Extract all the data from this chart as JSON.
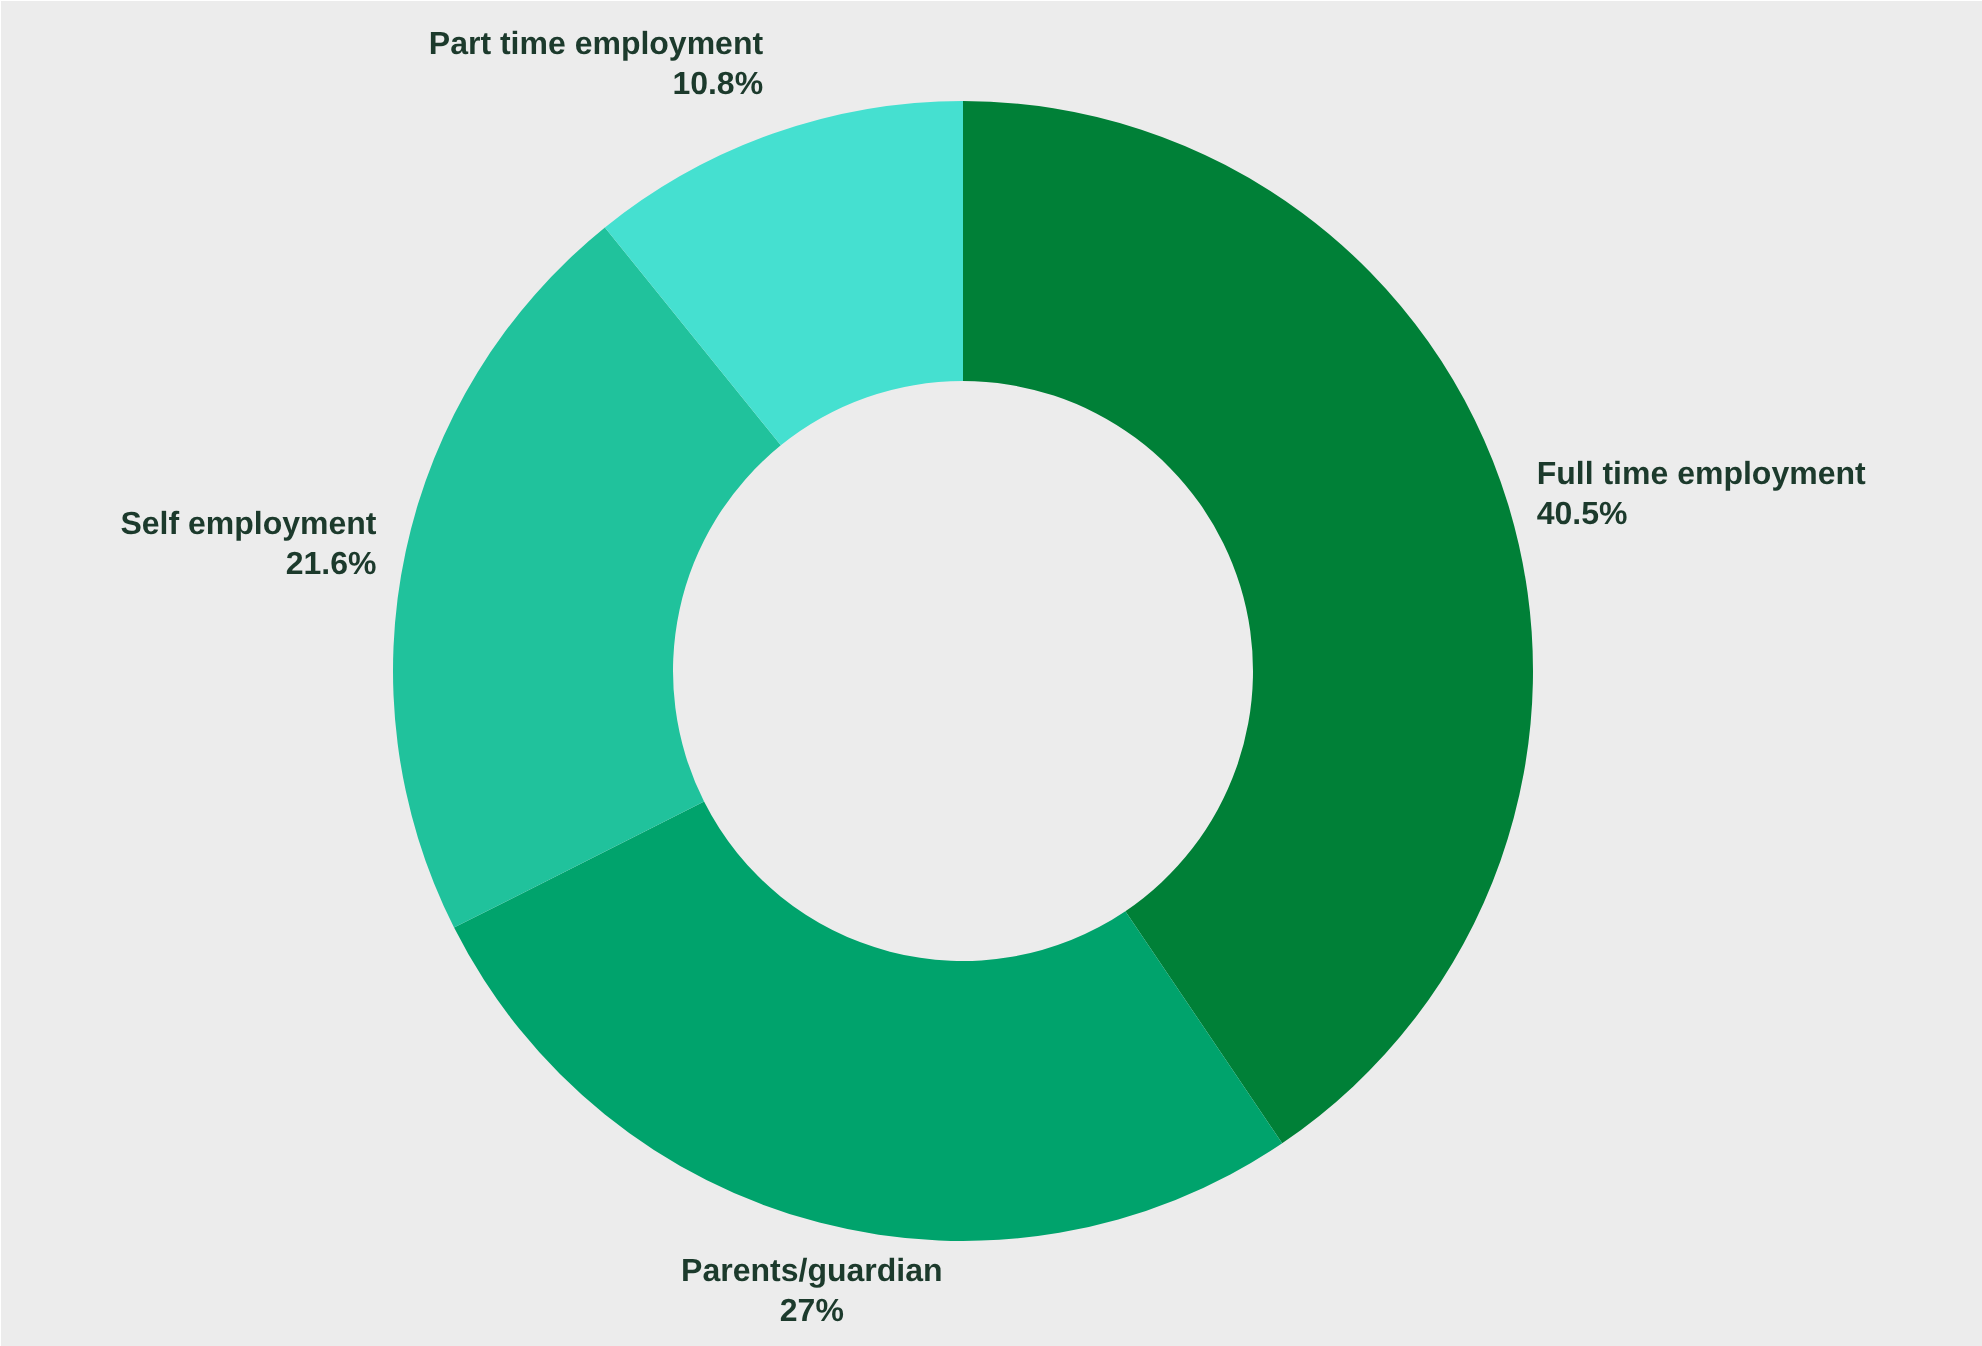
{
  "chart_data": {
    "type": "donut",
    "categories": [
      "Full time employment",
      "Parents/guardian",
      "Self employment",
      "Part time employment"
    ],
    "values": [
      40.5,
      27,
      21.6,
      10.8
    ],
    "colors": [
      "#008037",
      "#00a36c",
      "#20c29c",
      "#45e0d0"
    ],
    "value_labels": [
      "40.5%",
      "27%",
      "21.6%",
      "10.8%"
    ]
  }
}
